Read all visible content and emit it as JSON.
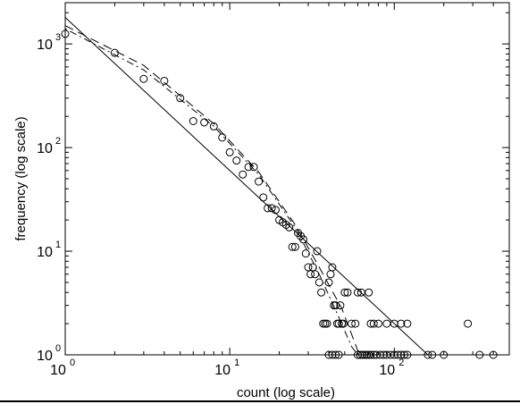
{
  "chart_data": {
    "type": "scatter",
    "xscale": "log",
    "yscale": "log",
    "xlim": [
      1,
      500
    ],
    "ylim": [
      1,
      2500
    ],
    "xlabel": "count (log scale)",
    "ylabel": "frequency (log scale)",
    "title": "",
    "grid": false,
    "x_ticks": [
      {
        "base": "10",
        "exp": "0",
        "value": 1
      },
      {
        "base": "10",
        "exp": "1",
        "value": 10
      },
      {
        "base": "10",
        "exp": "2",
        "value": 100
      }
    ],
    "y_ticks": [
      {
        "base": "10",
        "exp": "0",
        "value": 1
      },
      {
        "base": "10",
        "exp": "1",
        "value": 10
      },
      {
        "base": "10",
        "exp": "2",
        "value": 100
      },
      {
        "base": "10",
        "exp": "3",
        "value": 1000
      }
    ],
    "series": [
      {
        "style": "markers",
        "marker": "circle-open",
        "points": [
          [
            1,
            1250
          ],
          [
            2,
            820
          ],
          [
            3,
            460
          ],
          [
            4,
            440
          ],
          [
            5,
            300
          ],
          [
            6,
            180
          ],
          [
            7,
            175
          ],
          [
            8,
            160
          ],
          [
            9,
            125
          ],
          [
            10,
            90
          ],
          [
            11,
            75
          ],
          [
            12,
            55
          ],
          [
            13,
            65
          ],
          [
            14,
            65
          ],
          [
            15,
            47
          ],
          [
            16,
            33
          ],
          [
            17,
            26
          ],
          [
            18,
            26
          ],
          [
            19,
            25
          ],
          [
            20,
            20
          ],
          [
            21,
            19
          ],
          [
            22,
            18
          ],
          [
            23,
            17
          ],
          [
            24,
            11
          ],
          [
            25,
            11
          ],
          [
            26,
            15
          ],
          [
            27,
            14
          ],
          [
            28,
            13
          ],
          [
            29,
            9.5
          ],
          [
            30,
            7
          ],
          [
            31,
            6
          ],
          [
            32,
            7
          ],
          [
            33,
            6
          ],
          [
            34,
            10
          ],
          [
            35,
            5
          ],
          [
            36,
            4
          ],
          [
            37,
            2
          ],
          [
            38,
            2
          ],
          [
            39,
            2
          ],
          [
            40,
            5
          ],
          [
            41,
            6
          ],
          [
            42,
            7
          ],
          [
            43,
            3
          ],
          [
            44,
            3
          ],
          [
            45,
            2
          ],
          [
            46,
            2
          ],
          [
            47,
            3
          ],
          [
            48,
            2
          ],
          [
            49,
            2
          ],
          [
            50,
            4
          ],
          [
            52,
            4
          ],
          [
            55,
            2
          ],
          [
            58,
            2
          ],
          [
            60,
            4
          ],
          [
            63,
            4
          ],
          [
            70,
            4
          ],
          [
            72,
            2
          ],
          [
            75,
            2
          ],
          [
            80,
            2
          ],
          [
            90,
            2
          ],
          [
            100,
            2
          ],
          [
            110,
            2
          ],
          [
            120,
            2
          ],
          [
            280,
            2
          ],
          [
            40,
            1
          ],
          [
            42,
            1
          ],
          [
            44,
            1
          ],
          [
            46,
            1
          ],
          [
            60,
            1
          ],
          [
            62,
            1
          ],
          [
            64,
            1
          ],
          [
            66,
            1
          ],
          [
            68,
            1
          ],
          [
            70,
            1
          ],
          [
            72,
            1
          ],
          [
            75,
            1
          ],
          [
            78,
            1
          ],
          [
            82,
            1
          ],
          [
            86,
            1
          ],
          [
            90,
            1
          ],
          [
            95,
            1
          ],
          [
            100,
            1
          ],
          [
            105,
            1
          ],
          [
            110,
            1
          ],
          [
            115,
            1
          ],
          [
            120,
            1
          ],
          [
            160,
            1
          ],
          [
            170,
            1
          ],
          [
            200,
            1
          ],
          [
            330,
            1
          ],
          [
            400,
            1
          ]
        ]
      },
      {
        "style": "solid",
        "points": [
          [
            1,
            1800
          ],
          [
            160,
            1
          ]
        ]
      },
      {
        "style": "dashed",
        "points": [
          [
            1,
            1500
          ],
          [
            3,
            620
          ],
          [
            8,
            170
          ],
          [
            15,
            58
          ],
          [
            25,
            18
          ],
          [
            35,
            7
          ],
          [
            48,
            2.8
          ],
          [
            60,
            1.1
          ],
          [
            65,
            0.9
          ]
        ]
      },
      {
        "style": "dotted",
        "points": [
          [
            1,
            1400
          ],
          [
            3,
            560
          ],
          [
            8,
            160
          ],
          [
            15,
            55
          ],
          [
            25,
            17
          ],
          [
            35,
            6
          ],
          [
            45,
            2.5
          ],
          [
            55,
            1.2
          ],
          [
            60,
            0.9
          ]
        ]
      }
    ]
  }
}
